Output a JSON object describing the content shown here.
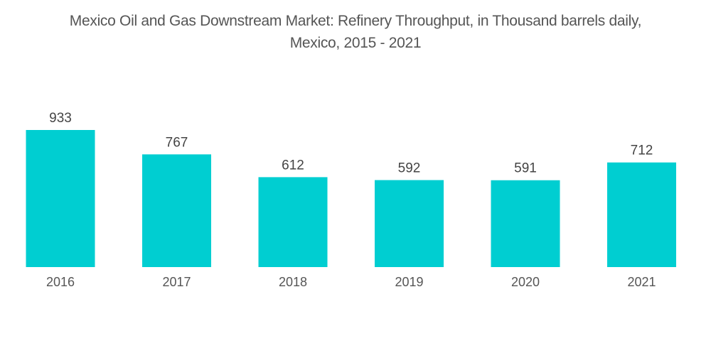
{
  "chart_data": {
    "type": "bar",
    "title": "Mexico Oil and Gas Downstream Market: Refinery Throughput, in Thousand barrels daily, Mexico, 2015 - 2021",
    "title_lines": [
      "Mexico Oil and Gas Downstream Market: Refinery Throughput, in Thousand barrels daily,",
      "Mexico, 2015 - 2021"
    ],
    "categories": [
      "2016",
      "2017",
      "2018",
      "2019",
      "2020",
      "2021"
    ],
    "values": [
      933,
      767,
      612,
      592,
      591,
      712
    ],
    "data_labels": [
      "933",
      "767",
      "612",
      "592",
      "591",
      "712"
    ],
    "xlabel": "",
    "ylabel": "",
    "ylim": [
      0,
      933
    ],
    "grid": false,
    "legend": "none",
    "bar_color": "#00ced1"
  }
}
